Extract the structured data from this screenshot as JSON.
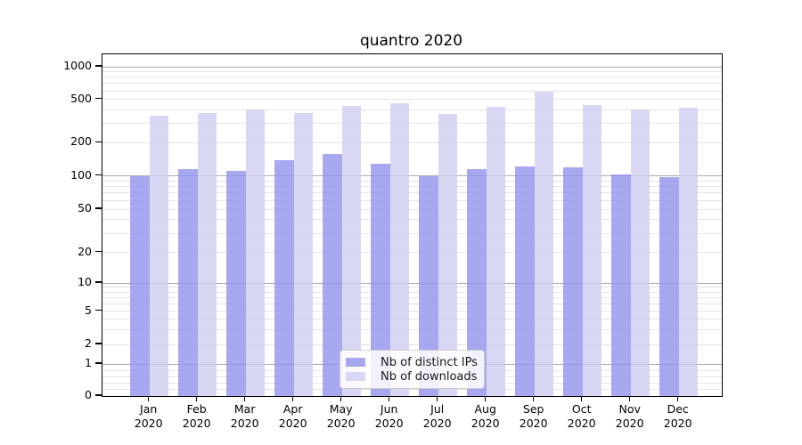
{
  "title": "quantro 2020",
  "legend": {
    "position": "lower center",
    "items": [
      {
        "label": "Nb of distinct IPs"
      },
      {
        "label": "Nb of downloads"
      }
    ]
  },
  "chart_data": {
    "type": "bar",
    "title": "quantro 2020",
    "categories": [
      "Jan 2020",
      "Feb 2020",
      "Mar 2020",
      "Apr 2020",
      "May 2020",
      "Jun 2020",
      "Jul 2020",
      "Aug 2020",
      "Sep 2020",
      "Oct 2020",
      "Nov 2020",
      "Dec 2020"
    ],
    "series": [
      {
        "name": "Nb of distinct IPs",
        "color": "rgba(146,146,236,0.8)",
        "values": [
          100,
          115,
          112,
          140,
          157,
          130,
          99,
          115,
          122,
          119,
          104,
          97
        ]
      },
      {
        "name": "Nb of downloads",
        "color": "rgba(206,206,243,0.8)",
        "values": [
          355,
          377,
          402,
          372,
          435,
          462,
          365,
          428,
          590,
          445,
          405,
          420
        ]
      }
    ],
    "xlabel": "",
    "ylabel": "",
    "y_scale": "log above 1, linear 0-1",
    "y_ticks": [
      0,
      1,
      2,
      5,
      10,
      20,
      50,
      100,
      200,
      500,
      1000
    ],
    "ylim": [
      0,
      1300
    ],
    "grid": "horizontal major (1,10,100,1000) + minor",
    "legend_position": "lower center",
    "colors": {
      "grid_major": "#ababab",
      "grid_minor": "#e4e4e4",
      "axis": "#000000",
      "background": "#ffffff"
    }
  }
}
